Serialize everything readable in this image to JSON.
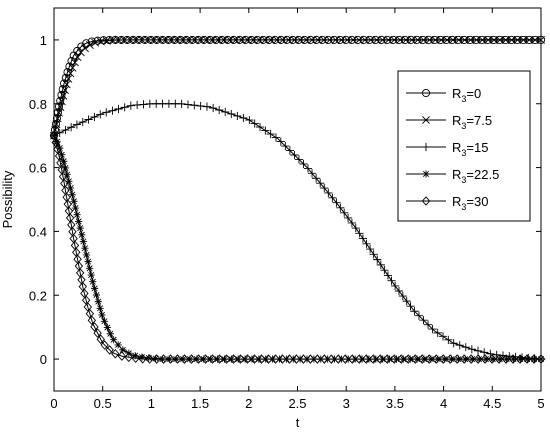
{
  "chart_data": {
    "type": "line",
    "title": "",
    "xlabel": "t",
    "ylabel": "Possibility",
    "xlim": [
      0,
      5
    ],
    "ylim": [
      -0.1,
      1.1
    ],
    "xticks": [
      "0",
      "0.5",
      "1",
      "1.5",
      "2",
      "2.5",
      "3",
      "3.5",
      "4",
      "4.5",
      "5"
    ],
    "yticks": [
      "0",
      "0.2",
      "0.4",
      "0.6",
      "0.8",
      "1"
    ],
    "grid": false,
    "legend_position": "right",
    "series": [
      {
        "name": "R3=0",
        "legend_label": {
          "prefix": "R",
          "sub": "3",
          "suffix": "=0"
        },
        "marker": "circle",
        "x": [
          0,
          0.05,
          0.1,
          0.15,
          0.2,
          0.25,
          0.3,
          0.35,
          0.4,
          0.5,
          0.6,
          0.8,
          1.0,
          1.5,
          2.0,
          2.5,
          3.0,
          3.5,
          4.0,
          4.5,
          5.0
        ],
        "y": [
          0.7,
          0.79,
          0.86,
          0.91,
          0.95,
          0.97,
          0.985,
          0.992,
          0.996,
          0.999,
          1.0,
          1.0,
          1.0,
          1.0,
          1.0,
          1.0,
          1.0,
          1.0,
          1.0,
          1.0,
          1.0
        ]
      },
      {
        "name": "R3=7.5",
        "legend_label": {
          "prefix": "R",
          "sub": "3",
          "suffix": "=7.5"
        },
        "marker": "x",
        "x": [
          0,
          0.05,
          0.1,
          0.15,
          0.2,
          0.25,
          0.3,
          0.35,
          0.4,
          0.5,
          0.6,
          0.8,
          1.0,
          1.5,
          2.0,
          2.5,
          3.0,
          3.5,
          4.0,
          4.5,
          5.0
        ],
        "y": [
          0.7,
          0.77,
          0.83,
          0.88,
          0.92,
          0.95,
          0.97,
          0.98,
          0.99,
          0.996,
          0.999,
          1.0,
          1.0,
          1.0,
          1.0,
          1.0,
          1.0,
          1.0,
          1.0,
          1.0,
          1.0
        ]
      },
      {
        "name": "R3=15",
        "legend_label": {
          "prefix": "R",
          "sub": "3",
          "suffix": "=15"
        },
        "marker": "plus",
        "x": [
          0,
          0.2,
          0.5,
          0.8,
          1.0,
          1.3,
          1.6,
          2.0,
          2.3,
          2.6,
          2.9,
          3.1,
          3.3,
          3.5,
          3.7,
          3.9,
          4.1,
          4.3,
          4.5,
          4.7,
          5.0
        ],
        "y": [
          0.7,
          0.73,
          0.77,
          0.795,
          0.8,
          0.8,
          0.79,
          0.75,
          0.69,
          0.6,
          0.49,
          0.41,
          0.32,
          0.23,
          0.15,
          0.09,
          0.05,
          0.03,
          0.015,
          0.008,
          0.0
        ]
      },
      {
        "name": "R3=22.5",
        "legend_label": {
          "prefix": "R",
          "sub": "3",
          "suffix": "=22.5"
        },
        "marker": "star",
        "x": [
          0,
          0.05,
          0.1,
          0.2,
          0.3,
          0.4,
          0.5,
          0.6,
          0.7,
          0.8,
          0.9,
          1.0,
          1.1,
          1.2,
          1.5,
          2.0,
          2.5,
          3.0,
          3.5,
          4.0,
          4.5,
          5.0
        ],
        "y": [
          0.7,
          0.67,
          0.62,
          0.5,
          0.37,
          0.24,
          0.13,
          0.065,
          0.03,
          0.013,
          0.006,
          0.003,
          0.0,
          0.0,
          0.0,
          0.0,
          0.0,
          0.0,
          0.0,
          0.0,
          0.0,
          0.0
        ]
      },
      {
        "name": "R3=30",
        "legend_label": {
          "prefix": "R",
          "sub": "3",
          "suffix": "=30"
        },
        "marker": "diamond",
        "x": [
          0,
          0.05,
          0.1,
          0.15,
          0.2,
          0.25,
          0.3,
          0.35,
          0.4,
          0.5,
          0.6,
          0.7,
          0.8,
          0.9,
          1.0,
          1.5,
          2.0,
          2.5,
          3.0,
          3.5,
          4.0,
          4.5,
          5.0
        ],
        "y": [
          0.7,
          0.64,
          0.56,
          0.47,
          0.38,
          0.3,
          0.22,
          0.16,
          0.11,
          0.05,
          0.02,
          0.009,
          0.004,
          0.001,
          0.0,
          0.0,
          0.0,
          0.0,
          0.0,
          0.0,
          0.0,
          0.0,
          0.0
        ]
      }
    ]
  }
}
